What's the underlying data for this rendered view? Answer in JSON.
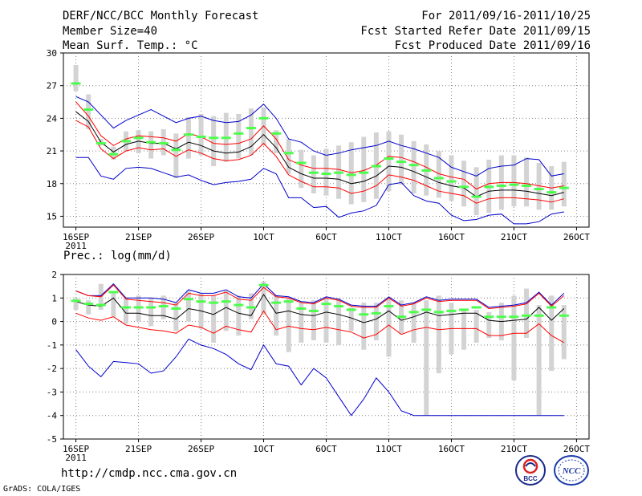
{
  "header": {
    "title": "DERF/NCC/BCC Monthly Forecast",
    "member_size": "Member Size=40",
    "variable": "Mean Surf. Temp.: °C",
    "period": "For 2011/09/16-2011/10/25",
    "refer_date": "Fcst Started Refer Date 2011/09/15",
    "produced_date": "Fcst Produced Date 2011/09/16"
  },
  "footer": {
    "url": "http://cmdp.ncc.cma.gov.cn",
    "credit": "GrADS: COLA/IGES",
    "logo_left": "BCC",
    "logo_right": "NCC"
  },
  "colors": {
    "box": "#d3d3d3",
    "median": "#4cff4c",
    "ens_mean": "#000000",
    "std_band": "#ff0000",
    "min_max": "#0000cc",
    "grid": "#808080"
  },
  "chart_data": [
    {
      "type": "line",
      "title": "Mean Surf. Temp.: °C",
      "ylim": [
        14,
        30
      ],
      "yticks": [
        15,
        18,
        21,
        24,
        27,
        30
      ],
      "xlabel": "",
      "ylabel": "",
      "grid": true,
      "xticks": [
        {
          "day": 0,
          "label": "16SEP",
          "sub": "2011"
        },
        {
          "day": 5,
          "label": "21SEP",
          "sub": ""
        },
        {
          "day": 10,
          "label": "26SEP",
          "sub": ""
        },
        {
          "day": 15,
          "label": "1OCT",
          "sub": ""
        },
        {
          "day": 20,
          "label": "6OCT",
          "sub": ""
        },
        {
          "day": 25,
          "label": "11OCT",
          "sub": ""
        },
        {
          "day": 30,
          "label": "16OCT",
          "sub": ""
        },
        {
          "day": 35,
          "label": "21OCT",
          "sub": ""
        },
        {
          "day": 40,
          "label": "26OCT",
          "sub": ""
        }
      ],
      "days": [
        0,
        1,
        2,
        3,
        4,
        5,
        6,
        7,
        8,
        9,
        10,
        11,
        12,
        13,
        14,
        15,
        16,
        17,
        18,
        19,
        20,
        21,
        22,
        23,
        24,
        25,
        26,
        27,
        28,
        29,
        30,
        31,
        32,
        33,
        34,
        35,
        36,
        37,
        38,
        39
      ],
      "box_low": [
        26.5,
        23.0,
        21.5,
        20.2,
        21.0,
        20.8,
        20.3,
        20.6,
        18.5,
        20.3,
        20.6,
        19.6,
        20.0,
        20.3,
        20.6,
        21.5,
        20.8,
        18.9,
        17.6,
        17.1,
        16.9,
        16.6,
        16.1,
        16.3,
        16.6,
        17.3,
        17.9,
        17.1,
        16.9,
        16.7,
        16.4,
        15.9,
        15.1,
        15.3,
        15.6,
        15.9,
        15.9,
        15.6,
        15.6,
        15.9
      ],
      "box_high": [
        28.9,
        26.2,
        22.1,
        21.4,
        22.8,
        22.9,
        22.8,
        23.0,
        22.6,
        24.1,
        24.4,
        24.2,
        24.5,
        24.4,
        24.9,
        25.0,
        22.9,
        22.1,
        21.1,
        20.6,
        21.2,
        21.5,
        21.8,
        22.3,
        22.7,
        22.8,
        22.5,
        21.9,
        21.6,
        21.0,
        20.6,
        20.1,
        19.5,
        20.2,
        20.6,
        20.6,
        20.4,
        19.9,
        19.6,
        20.0
      ],
      "median": [
        27.2,
        24.8,
        21.7,
        20.7,
        21.9,
        22.2,
        21.8,
        21.7,
        21.1,
        22.5,
        22.3,
        22.2,
        22.2,
        22.6,
        23.1,
        24.0,
        22.6,
        20.8,
        19.9,
        19.0,
        18.9,
        19.0,
        18.8,
        19.0,
        19.6,
        20.3,
        20.0,
        19.7,
        19.2,
        18.5,
        18.2,
        17.7,
        16.8,
        17.7,
        17.8,
        17.9,
        17.8,
        17.5,
        17.2,
        17.6
      ],
      "ens_mean": [
        24.6,
        23.7,
        21.8,
        20.9,
        21.6,
        21.9,
        21.7,
        21.7,
        21.2,
        21.8,
        21.5,
        21.0,
        20.8,
        20.9,
        21.4,
        22.5,
        21.3,
        19.5,
        18.9,
        18.5,
        18.5,
        18.4,
        18.0,
        18.2,
        18.7,
        19.6,
        19.5,
        19.1,
        18.6,
        18.1,
        17.8,
        17.6,
        16.8,
        17.3,
        17.4,
        17.4,
        17.3,
        17.1,
        16.9,
        17.2
      ],
      "std_upper": [
        25.5,
        24.2,
        22.4,
        21.5,
        22.1,
        22.4,
        22.3,
        22.2,
        21.9,
        22.6,
        22.3,
        21.7,
        21.6,
        21.7,
        22.1,
        23.3,
        22.1,
        20.2,
        19.7,
        19.4,
        19.4,
        19.3,
        19.0,
        19.2,
        19.7,
        20.5,
        20.4,
        20.0,
        19.5,
        18.9,
        18.6,
        18.4,
        17.5,
        18.0,
        18.1,
        18.1,
        18.0,
        17.8,
        17.6,
        17.8
      ],
      "std_lower": [
        23.8,
        23.2,
        21.2,
        20.3,
        21.0,
        21.3,
        21.1,
        21.2,
        20.5,
        21.1,
        20.8,
        20.3,
        20.1,
        20.2,
        20.6,
        21.7,
        20.5,
        18.8,
        18.2,
        17.7,
        17.7,
        17.6,
        17.1,
        17.3,
        17.8,
        18.8,
        18.6,
        18.3,
        17.8,
        17.3,
        17.1,
        16.9,
        16.2,
        16.6,
        16.7,
        16.7,
        16.6,
        16.5,
        16.3,
        16.6
      ],
      "max": [
        26.0,
        25.5,
        24.3,
        23.1,
        23.8,
        24.3,
        24.8,
        24.2,
        23.6,
        24.0,
        24.2,
        23.8,
        23.6,
        23.7,
        24.3,
        25.3,
        24.0,
        22.1,
        21.8,
        21.0,
        20.6,
        20.8,
        21.1,
        21.3,
        21.5,
        21.9,
        21.5,
        21.2,
        20.8,
        20.4,
        19.5,
        19.1,
        18.7,
        19.4,
        19.6,
        19.7,
        20.3,
        20.2,
        18.7,
        18.9
      ],
      "min": [
        20.4,
        20.4,
        18.7,
        18.4,
        19.4,
        19.5,
        19.4,
        19.0,
        18.6,
        18.8,
        18.3,
        17.9,
        18.1,
        18.2,
        18.4,
        19.4,
        18.9,
        16.7,
        16.7,
        15.8,
        15.9,
        14.9,
        15.3,
        15.5,
        16.0,
        17.9,
        18.1,
        16.9,
        16.4,
        16.2,
        15.1,
        14.6,
        14.7,
        15.1,
        15.2,
        14.3,
        14.3,
        14.5,
        15.2,
        15.4
      ]
    },
    {
      "type": "line",
      "title": "Prec.: log(mm/d)",
      "ylim": [
        -5,
        2
      ],
      "yticks": [
        -5,
        -4,
        -3,
        -2,
        -1,
        0,
        1,
        2
      ],
      "xlabel": "",
      "ylabel": "",
      "grid": true,
      "xticks": [
        {
          "day": 0,
          "label": "16SEP",
          "sub": "2011"
        },
        {
          "day": 5,
          "label": "21SEP",
          "sub": ""
        },
        {
          "day": 10,
          "label": "26SEP",
          "sub": ""
        },
        {
          "day": 15,
          "label": "1OCT",
          "sub": ""
        },
        {
          "day": 20,
          "label": "6OCT",
          "sub": ""
        },
        {
          "day": 25,
          "label": "11OCT",
          "sub": ""
        },
        {
          "day": 30,
          "label": "16OCT",
          "sub": ""
        },
        {
          "day": 35,
          "label": "21OCT",
          "sub": ""
        },
        {
          "day": 40,
          "label": "26OCT",
          "sub": ""
        }
      ],
      "days": [
        0,
        1,
        2,
        3,
        4,
        5,
        6,
        7,
        8,
        9,
        10,
        11,
        12,
        13,
        14,
        15,
        16,
        17,
        18,
        19,
        20,
        21,
        22,
        23,
        24,
        25,
        26,
        27,
        28,
        29,
        30,
        31,
        32,
        33,
        34,
        35,
        36,
        37,
        38,
        39
      ],
      "box_low": [
        0.5,
        0.3,
        0.5,
        0.2,
        -0.1,
        0.0,
        -0.2,
        0.1,
        -0.4,
        0.0,
        -0.3,
        -0.9,
        -0.4,
        -0.6,
        0.1,
        0.3,
        -0.6,
        -1.3,
        -0.9,
        -0.8,
        -0.9,
        -1.0,
        -0.4,
        -1.2,
        -0.8,
        -1.5,
        -0.5,
        -0.9,
        -4.0,
        -2.2,
        -1.4,
        -1.2,
        -0.9,
        -0.7,
        -0.8,
        -2.5,
        -0.7,
        -4.0,
        -2.1,
        -1.6
      ],
      "box_high": [
        1.0,
        0.9,
        1.6,
        1.3,
        1.0,
        1.1,
        1.0,
        1.1,
        0.8,
        1.3,
        1.2,
        1.1,
        1.3,
        1.1,
        1.2,
        1.7,
        1.1,
        1.0,
        0.8,
        0.9,
        1.0,
        1.0,
        0.6,
        0.8,
        0.8,
        1.0,
        0.9,
        0.8,
        0.9,
        1.1,
        0.8,
        0.5,
        0.5,
        0.4,
        0.8,
        1.1,
        1.4,
        0.7,
        1.1,
        0.7
      ],
      "median": [
        0.88,
        0.75,
        0.7,
        1.25,
        0.6,
        0.6,
        0.6,
        0.65,
        0.55,
        0.95,
        0.85,
        0.8,
        0.85,
        0.7,
        0.6,
        1.55,
        0.8,
        0.85,
        0.55,
        0.45,
        0.75,
        0.65,
        0.5,
        0.3,
        0.35,
        0.65,
        0.2,
        0.4,
        0.5,
        0.4,
        0.45,
        0.5,
        0.6,
        0.2,
        0.2,
        0.2,
        0.25,
        0.25,
        0.6,
        0.25
      ],
      "ens_mean": [
        0.85,
        0.7,
        0.65,
        1.0,
        0.35,
        0.35,
        0.25,
        0.25,
        0.1,
        0.55,
        0.45,
        0.3,
        0.6,
        0.35,
        0.25,
        1.15,
        0.35,
        0.45,
        0.3,
        0.25,
        0.4,
        0.3,
        0.15,
        -0.05,
        0.1,
        0.45,
        0.05,
        0.2,
        0.4,
        0.25,
        0.3,
        0.35,
        0.35,
        0.05,
        0.0,
        0.05,
        0.1,
        0.6,
        0.05,
        0.55
      ],
      "std_upper": [
        1.3,
        1.1,
        1.05,
        1.55,
        0.95,
        0.9,
        0.85,
        0.8,
        0.7,
        1.2,
        1.1,
        1.1,
        1.25,
        0.95,
        0.9,
        1.45,
        1.05,
        1.0,
        0.8,
        0.75,
        1.0,
        0.9,
        0.65,
        0.6,
        0.6,
        1.0,
        0.65,
        0.75,
        1.0,
        0.85,
        0.9,
        0.9,
        0.9,
        0.55,
        0.6,
        0.65,
        0.75,
        1.2,
        0.65,
        1.1
      ],
      "std_lower": [
        0.35,
        0.15,
        0.05,
        0.2,
        -0.15,
        -0.25,
        -0.35,
        -0.4,
        -0.5,
        -0.15,
        -0.25,
        -0.5,
        -0.2,
        -0.35,
        -0.45,
        0.45,
        -0.35,
        -0.2,
        -0.3,
        -0.35,
        -0.25,
        -0.35,
        -0.45,
        -0.7,
        -0.55,
        -0.15,
        -0.55,
        -0.35,
        -0.25,
        -0.35,
        -0.3,
        -0.3,
        -0.3,
        -0.6,
        -0.6,
        -0.5,
        -0.5,
        -0.1,
        -0.6,
        -0.9
      ],
      "max": [
        1.3,
        1.1,
        1.1,
        1.6,
        1.0,
        1.0,
        1.0,
        0.95,
        0.8,
        1.35,
        1.2,
        1.2,
        1.35,
        1.05,
        1.0,
        1.6,
        1.1,
        1.05,
        0.85,
        0.8,
        1.05,
        0.95,
        0.7,
        0.65,
        0.65,
        1.05,
        0.7,
        0.8,
        1.05,
        0.9,
        0.95,
        0.95,
        0.95,
        0.6,
        0.65,
        0.7,
        0.8,
        1.25,
        0.7,
        1.2
      ],
      "min": [
        -1.2,
        -1.9,
        -2.35,
        -1.7,
        -1.75,
        -1.8,
        -2.2,
        -2.1,
        -1.5,
        -0.75,
        -1.0,
        -1.15,
        -1.4,
        -1.8,
        -2.05,
        -1.0,
        -1.8,
        -1.9,
        -2.7,
        -2.0,
        -2.4,
        -3.2,
        -4.0,
        -3.3,
        -2.4,
        -3.0,
        -3.8,
        -4.0,
        -4.0,
        -4.0,
        -4.0,
        -4.0,
        -4.0,
        -4.0,
        -4.0,
        -4.0,
        -4.0,
        -4.0,
        -4.0,
        -4.0
      ]
    }
  ]
}
